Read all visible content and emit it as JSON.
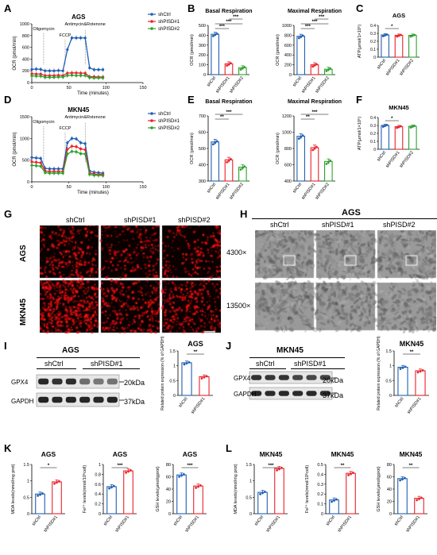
{
  "panel_letters": [
    "A",
    "B",
    "C",
    "D",
    "E",
    "F",
    "G",
    "H",
    "I",
    "J",
    "K",
    "L"
  ],
  "colors": {
    "ctrl": "#1f5fb5",
    "sh1": "#e8232a",
    "sh2": "#2ca02c",
    "gray": "#555555"
  },
  "ocr": {
    "xlabel": "Time (minutes)",
    "ylabel": "OCR (pmol/min)",
    "legend": [
      "shCtrl",
      "shPISD#1",
      "shPISD#2"
    ],
    "injections": [
      "Oligomycin",
      "FCCP",
      "Antimycin&Rotenone"
    ],
    "A": {
      "title": "AGS"
    },
    "D": {
      "title": "MKN45"
    }
  },
  "chart_data": [
    {
      "panel": "A",
      "type": "line",
      "title": "AGS",
      "xlabel": "Time (minutes)",
      "ylabel": "OCR (pmol/min)",
      "xlim": [
        0,
        150
      ],
      "ylim": [
        0,
        1000
      ],
      "x": [
        0,
        6,
        12,
        18,
        24,
        30,
        36,
        42,
        48,
        54,
        60,
        66,
        72,
        78,
        84,
        90,
        96
      ],
      "series": [
        {
          "name": "shCtrl",
          "values": [
            225,
            230,
            225,
            200,
            200,
            200,
            205,
            200,
            560,
            760,
            760,
            760,
            760,
            250,
            220,
            220,
            220
          ]
        },
        {
          "name": "shPISD#1",
          "values": [
            150,
            145,
            145,
            120,
            120,
            120,
            125,
            120,
            160,
            165,
            165,
            160,
            160,
            100,
            100,
            95,
            95
          ]
        },
        {
          "name": "shPISD#2",
          "values": [
            115,
            110,
            110,
            90,
            90,
            90,
            95,
            95,
            120,
            125,
            120,
            120,
            120,
            85,
            80,
            80,
            80
          ]
        }
      ]
    },
    {
      "panel": "D",
      "type": "line",
      "title": "MKN45",
      "xlabel": "Time (minutes)",
      "ylabel": "OCR (pmol/min)",
      "xlim": [
        0,
        150
      ],
      "ylim": [
        0,
        1500
      ],
      "x": [
        0,
        6,
        12,
        18,
        24,
        30,
        36,
        42,
        48,
        54,
        60,
        66,
        72,
        78,
        84,
        90,
        96
      ],
      "series": [
        {
          "name": "shCtrl",
          "values": [
            560,
            550,
            540,
            310,
            300,
            300,
            300,
            300,
            900,
            1000,
            990,
            900,
            880,
            250,
            220,
            210,
            200
          ]
        },
        {
          "name": "shPISD#1",
          "values": [
            460,
            450,
            440,
            250,
            240,
            240,
            240,
            240,
            750,
            820,
            810,
            760,
            740,
            200,
            180,
            170,
            170
          ]
        },
        {
          "name": "shPISD#2",
          "values": [
            380,
            370,
            360,
            210,
            200,
            200,
            200,
            200,
            640,
            700,
            690,
            650,
            640,
            170,
            150,
            150,
            145
          ]
        }
      ]
    },
    {
      "panel": "B",
      "type": "bar",
      "title": "Basal Respiration",
      "ylabel": "OCR (pmol/min)",
      "categories": [
        "shCtrl",
        "shPISD#1",
        "shPISD#2"
      ],
      "values": [
        410,
        110,
        70
      ],
      "ylim": [
        0,
        500
      ],
      "significance": [
        "***",
        "***",
        "***"
      ]
    },
    {
      "panel": "B",
      "type": "bar",
      "title": "Maximal Respiration",
      "ylabel": "OCR (pmol/min)",
      "categories": [
        "shCtrl",
        "shPISD#1",
        "shPISD#2"
      ],
      "values": [
        780,
        200,
        110
      ],
      "ylim": [
        0,
        1000
      ],
      "significance": [
        "***",
        "***",
        "***"
      ]
    },
    {
      "panel": "C",
      "type": "bar",
      "title": "AGS",
      "ylabel": "ATP(μmol/1×10⁶)",
      "categories": [
        "shCtrl",
        "shPISD#1",
        "shPISD#2"
      ],
      "values": [
        0.28,
        0.275,
        0.275
      ],
      "ylim": [
        0,
        0.4
      ],
      "significance": [
        "*"
      ]
    },
    {
      "panel": "E",
      "type": "bar",
      "title": "Basal Respiration",
      "ylabel": "OCR (pmol/min)",
      "categories": [
        "shCtrl",
        "shPISD#1",
        "shPISD#2"
      ],
      "values": [
        540,
        430,
        385
      ],
      "ylim": [
        300,
        700
      ],
      "significance": [
        "**",
        "***"
      ]
    },
    {
      "panel": "E",
      "type": "bar",
      "title": "Maximal Respiration",
      "ylabel": "OCR (pmol/min)",
      "categories": [
        "shCtrl",
        "shPISD#1",
        "shPISD#2"
      ],
      "values": [
        950,
        810,
        640
      ],
      "ylim": [
        400,
        1200
      ],
      "significance": [
        "**",
        "***"
      ]
    },
    {
      "panel": "F",
      "type": "bar",
      "title": "MKN45",
      "ylabel": "ATP(μmol/1×10⁶)",
      "categories": [
        "shCtrl",
        "shPISD#1",
        "shPISD#2"
      ],
      "values": [
        0.3,
        0.285,
        0.29
      ],
      "ylim": [
        0,
        0.4
      ],
      "significance": [
        "*"
      ]
    },
    {
      "panel": "I",
      "type": "bar",
      "title": "AGS",
      "ylabel": "Related protein expression (% of GAPDH)",
      "categories": [
        "shCtrl",
        "shPISD#1"
      ],
      "values": [
        1.1,
        0.63
      ],
      "ylim": [
        0,
        1.5
      ],
      "significance": [
        "**"
      ]
    },
    {
      "panel": "J",
      "type": "bar",
      "title": "MKN45",
      "ylabel": "Related protein expression (% of GAPDH)",
      "categories": [
        "shCtrl",
        "shPISD#1"
      ],
      "values": [
        0.95,
        0.83
      ],
      "ylim": [
        0,
        1.5
      ],
      "significance": [
        "**"
      ]
    },
    {
      "panel": "K",
      "type": "bar",
      "title": "AGS",
      "ylabel": "MDA levels(nmol/mg prot)",
      "categories": [
        "shCtrl",
        "shPISD#1"
      ],
      "values": [
        0.6,
        0.97
      ],
      "ylim": [
        0,
        1.5
      ],
      "significance": [
        "*"
      ]
    },
    {
      "panel": "K",
      "type": "bar",
      "title": "AGS",
      "ylabel": "Fe²⁺ levels(nmol/10⁶cell)",
      "categories": [
        "shCtrl",
        "shPISD#1"
      ],
      "values": [
        0.55,
        0.87
      ],
      "ylim": [
        0,
        1.0
      ],
      "significance": [
        "***"
      ]
    },
    {
      "panel": "K",
      "type": "bar",
      "title": "AGS",
      "ylabel": "GSH levels(μmol/gprot)",
      "categories": [
        "shCtrl",
        "shPISD#1"
      ],
      "values": [
        63,
        45
      ],
      "ylim": [
        0,
        80
      ],
      "significance": [
        "***"
      ]
    },
    {
      "panel": "L",
      "type": "bar",
      "title": "MKN45",
      "ylabel": "MDA levels(nmol/mg prot)",
      "categories": [
        "shCtrl",
        "shPISD#1"
      ],
      "values": [
        0.65,
        1.38
      ],
      "ylim": [
        0,
        1.5
      ],
      "significance": [
        "***"
      ]
    },
    {
      "panel": "L",
      "type": "bar",
      "title": "MKN45",
      "ylabel": "Fe²⁺ levels(nmol/10⁶cell)",
      "categories": [
        "shCtrl",
        "shPISD#1"
      ],
      "values": [
        0.14,
        0.41
      ],
      "ylim": [
        0,
        0.5
      ],
      "significance": [
        "**"
      ]
    },
    {
      "panel": "L",
      "type": "bar",
      "title": "MKN45",
      "ylabel": "GSH levels(μmol/gprot)",
      "categories": [
        "shCtrl",
        "shPISD#1"
      ],
      "values": [
        57,
        25
      ],
      "ylim": [
        0,
        80
      ],
      "significance": [
        "**"
      ]
    }
  ],
  "panelG": {
    "cols": [
      "shCtrl",
      "shPISD#1",
      "shPISD#2"
    ],
    "rows": [
      "AGS",
      "MKN45"
    ],
    "scale": "50μm"
  },
  "panelH": {
    "title": "AGS",
    "cols": [
      "shCtrl",
      "shPISD#1",
      "shPISD#2"
    ],
    "rows": [
      "4300×",
      "13500×"
    ]
  },
  "blotI": {
    "title": "AGS",
    "groups": [
      "shCtrl",
      "shPISD#1"
    ],
    "proteins": [
      "GPX4",
      "GAPDH"
    ],
    "sizes": [
      "20kDa",
      "37kDa"
    ]
  },
  "blotJ": {
    "title": "MKN45",
    "groups": [
      "shCtrl",
      "shPISD#1"
    ],
    "proteins": [
      "GPX4",
      "GAPDH"
    ],
    "sizes": [
      "20kDa",
      "37kDa"
    ]
  }
}
